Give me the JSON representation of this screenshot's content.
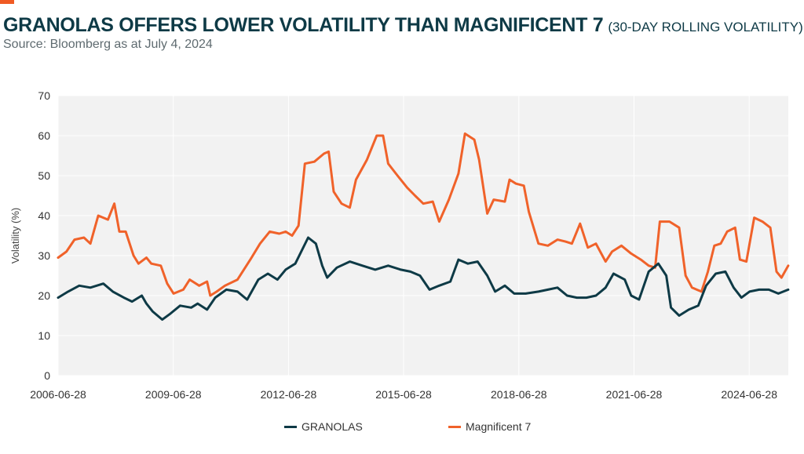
{
  "header": {
    "title": "GRANOLAS OFFERS LOWER VOLATILITY THAN MAGNIFICENT 7",
    "subtitle": "(30-DAY ROLLING VOLATILITY)",
    "source": "Source: Bloomberg as at July 4, 2024"
  },
  "colors": {
    "title": "#0e3a46",
    "accent": "#f05a23",
    "granolas": "#0e3a46",
    "magnificent7": "#f0622a",
    "plot_background": "#f2f2f2",
    "grid": "#ffffff"
  },
  "chart_data": {
    "type": "line",
    "xlabel": "",
    "ylabel": "Volatility (%)",
    "ylim": [
      0,
      70
    ],
    "yticks": [
      0,
      10,
      20,
      30,
      40,
      50,
      60,
      70
    ],
    "xlim": [
      "2006-06-28",
      "2025-07-05"
    ],
    "xticks": [
      "2006-06-28",
      "2009-06-28",
      "2012-06-28",
      "2015-06-28",
      "2018-06-28",
      "2021-06-28",
      "2024-06-28"
    ],
    "grid": true,
    "legend_position": "bottom",
    "series": [
      {
        "name": "GRANOLAS",
        "points": [
          [
            "2006-06-28",
            19.5
          ],
          [
            "2006-10-01",
            21
          ],
          [
            "2007-01-15",
            22.5
          ],
          [
            "2007-05-01",
            22
          ],
          [
            "2007-09-01",
            23
          ],
          [
            "2007-12-01",
            21
          ],
          [
            "2008-03-15",
            19.5
          ],
          [
            "2008-06-01",
            18.5
          ],
          [
            "2008-09-01",
            20
          ],
          [
            "2008-10-15",
            18
          ],
          [
            "2008-12-15",
            16
          ],
          [
            "2009-03-15",
            14
          ],
          [
            "2009-06-01",
            15.5
          ],
          [
            "2009-09-01",
            17.5
          ],
          [
            "2009-12-15",
            17
          ],
          [
            "2010-02-15",
            18
          ],
          [
            "2010-05-15",
            16.5
          ],
          [
            "2010-08-01",
            19.5
          ],
          [
            "2010-11-15",
            21.5
          ],
          [
            "2011-03-01",
            21
          ],
          [
            "2011-06-01",
            19
          ],
          [
            "2011-09-15",
            24
          ],
          [
            "2011-12-15",
            25.5
          ],
          [
            "2012-03-15",
            24
          ],
          [
            "2012-06-01",
            26.5
          ],
          [
            "2012-09-01",
            28
          ],
          [
            "2013-01-01",
            34.5
          ],
          [
            "2013-03-15",
            33
          ],
          [
            "2013-05-15",
            27.5
          ],
          [
            "2013-07-01",
            24.5
          ],
          [
            "2013-10-01",
            27
          ],
          [
            "2014-02-01",
            28.5
          ],
          [
            "2014-06-01",
            27.5
          ],
          [
            "2014-10-01",
            26.5
          ],
          [
            "2015-02-01",
            27.5
          ],
          [
            "2015-06-01",
            26.5
          ],
          [
            "2015-09-01",
            26
          ],
          [
            "2015-12-01",
            25
          ],
          [
            "2016-03-01",
            21.5
          ],
          [
            "2016-06-01",
            22.5
          ],
          [
            "2016-09-15",
            23.5
          ],
          [
            "2016-12-01",
            29
          ],
          [
            "2017-03-01",
            28
          ],
          [
            "2017-06-01",
            28.5
          ],
          [
            "2017-09-01",
            25
          ],
          [
            "2017-11-15",
            21
          ],
          [
            "2018-02-15",
            22.5
          ],
          [
            "2018-05-15",
            20.5
          ],
          [
            "2018-09-01",
            20.5
          ],
          [
            "2019-01-01",
            21
          ],
          [
            "2019-04-01",
            21.5
          ],
          [
            "2019-07-01",
            22
          ],
          [
            "2019-10-01",
            20
          ],
          [
            "2020-01-01",
            19.5
          ],
          [
            "2020-04-01",
            19.5
          ],
          [
            "2020-07-01",
            20
          ],
          [
            "2020-10-01",
            22
          ],
          [
            "2020-12-15",
            25.5
          ],
          [
            "2021-04-01",
            24
          ],
          [
            "2021-06-01",
            20
          ],
          [
            "2021-08-15",
            19
          ],
          [
            "2021-11-15",
            26
          ],
          [
            "2022-02-15",
            28
          ],
          [
            "2022-05-01",
            25
          ],
          [
            "2022-06-15",
            17
          ],
          [
            "2022-09-01",
            15
          ],
          [
            "2022-12-01",
            16.5
          ],
          [
            "2023-03-01",
            17.5
          ],
          [
            "2023-05-15",
            22.5
          ],
          [
            "2023-08-15",
            25.5
          ],
          [
            "2023-11-15",
            26
          ],
          [
            "2024-02-01",
            22
          ],
          [
            "2024-04-15",
            19.5
          ],
          [
            "2024-07-01",
            21
          ],
          [
            "2024-10-01",
            21.5
          ],
          [
            "2025-01-01",
            21.5
          ],
          [
            "2025-04-01",
            20.5
          ],
          [
            "2025-07-04",
            21.5
          ]
        ]
      },
      {
        "name": "Magnificent 7",
        "points": [
          [
            "2006-06-28",
            29.5
          ],
          [
            "2006-09-15",
            31
          ],
          [
            "2006-12-01",
            34
          ],
          [
            "2007-03-01",
            34.5
          ],
          [
            "2007-05-01",
            33
          ],
          [
            "2007-07-15",
            40
          ],
          [
            "2007-10-15",
            39
          ],
          [
            "2007-12-15",
            43
          ],
          [
            "2008-02-01",
            36
          ],
          [
            "2008-04-01",
            36
          ],
          [
            "2008-06-15",
            30
          ],
          [
            "2008-08-01",
            28
          ],
          [
            "2008-10-15",
            29.5
          ],
          [
            "2008-12-01",
            28
          ],
          [
            "2009-03-01",
            27.5
          ],
          [
            "2009-05-01",
            23
          ],
          [
            "2009-07-01",
            20.5
          ],
          [
            "2009-10-01",
            21.5
          ],
          [
            "2009-12-01",
            24
          ],
          [
            "2010-03-01",
            22.5
          ],
          [
            "2010-05-15",
            23.5
          ],
          [
            "2010-06-15",
            20
          ],
          [
            "2010-08-15",
            21
          ],
          [
            "2010-11-01",
            22.5
          ],
          [
            "2011-03-01",
            24
          ],
          [
            "2011-07-01",
            29
          ],
          [
            "2011-10-01",
            33
          ],
          [
            "2012-01-01",
            36
          ],
          [
            "2012-04-01",
            35.5
          ],
          [
            "2012-06-01",
            36
          ],
          [
            "2012-08-01",
            35
          ],
          [
            "2012-10-01",
            37.5
          ],
          [
            "2012-12-01",
            53
          ],
          [
            "2013-03-01",
            53.5
          ],
          [
            "2013-06-01",
            55.5
          ],
          [
            "2013-07-15",
            56
          ],
          [
            "2013-09-01",
            46
          ],
          [
            "2013-11-15",
            43
          ],
          [
            "2014-02-01",
            42
          ],
          [
            "2014-04-01",
            49
          ],
          [
            "2014-07-15",
            54
          ],
          [
            "2014-10-15",
            60
          ],
          [
            "2014-12-15",
            60
          ],
          [
            "2015-02-01",
            53
          ],
          [
            "2015-05-01",
            50
          ],
          [
            "2015-08-01",
            47
          ],
          [
            "2015-10-15",
            45
          ],
          [
            "2016-01-01",
            43
          ],
          [
            "2016-04-01",
            43.5
          ],
          [
            "2016-06-01",
            38.5
          ],
          [
            "2016-09-01",
            44
          ],
          [
            "2016-12-01",
            50.5
          ],
          [
            "2017-02-01",
            60.5
          ],
          [
            "2017-05-01",
            59
          ],
          [
            "2017-06-15",
            54
          ],
          [
            "2017-09-01",
            40.5
          ],
          [
            "2017-11-01",
            44
          ],
          [
            "2018-02-15",
            43.5
          ],
          [
            "2018-04-01",
            49
          ],
          [
            "2018-06-01",
            48
          ],
          [
            "2018-08-15",
            47.5
          ],
          [
            "2018-10-01",
            41
          ],
          [
            "2019-01-01",
            33
          ],
          [
            "2019-04-01",
            32.5
          ],
          [
            "2019-07-01",
            34
          ],
          [
            "2019-09-15",
            33.5
          ],
          [
            "2019-11-15",
            33
          ],
          [
            "2020-02-01",
            38
          ],
          [
            "2020-04-15",
            32
          ],
          [
            "2020-07-01",
            33
          ],
          [
            "2020-10-01",
            28.5
          ],
          [
            "2020-12-01",
            31
          ],
          [
            "2021-03-01",
            32.5
          ],
          [
            "2021-06-01",
            30.5
          ],
          [
            "2021-09-01",
            29
          ],
          [
            "2021-11-15",
            27.5
          ],
          [
            "2022-01-15",
            27
          ],
          [
            "2022-03-01",
            38.5
          ],
          [
            "2022-06-01",
            38.5
          ],
          [
            "2022-09-01",
            37
          ],
          [
            "2022-11-01",
            25
          ],
          [
            "2023-01-01",
            22
          ],
          [
            "2023-04-01",
            21
          ],
          [
            "2023-06-01",
            26
          ],
          [
            "2023-08-01",
            32.5
          ],
          [
            "2023-10-01",
            33
          ],
          [
            "2023-12-01",
            36
          ],
          [
            "2024-02-15",
            37
          ],
          [
            "2024-04-01",
            29
          ],
          [
            "2024-06-01",
            28.5
          ],
          [
            "2024-08-15",
            39.5
          ],
          [
            "2024-11-01",
            38.5
          ],
          [
            "2025-01-15",
            37
          ],
          [
            "2025-03-15",
            26
          ],
          [
            "2025-05-01",
            24.5
          ],
          [
            "2025-07-04",
            27.5
          ]
        ]
      }
    ]
  }
}
